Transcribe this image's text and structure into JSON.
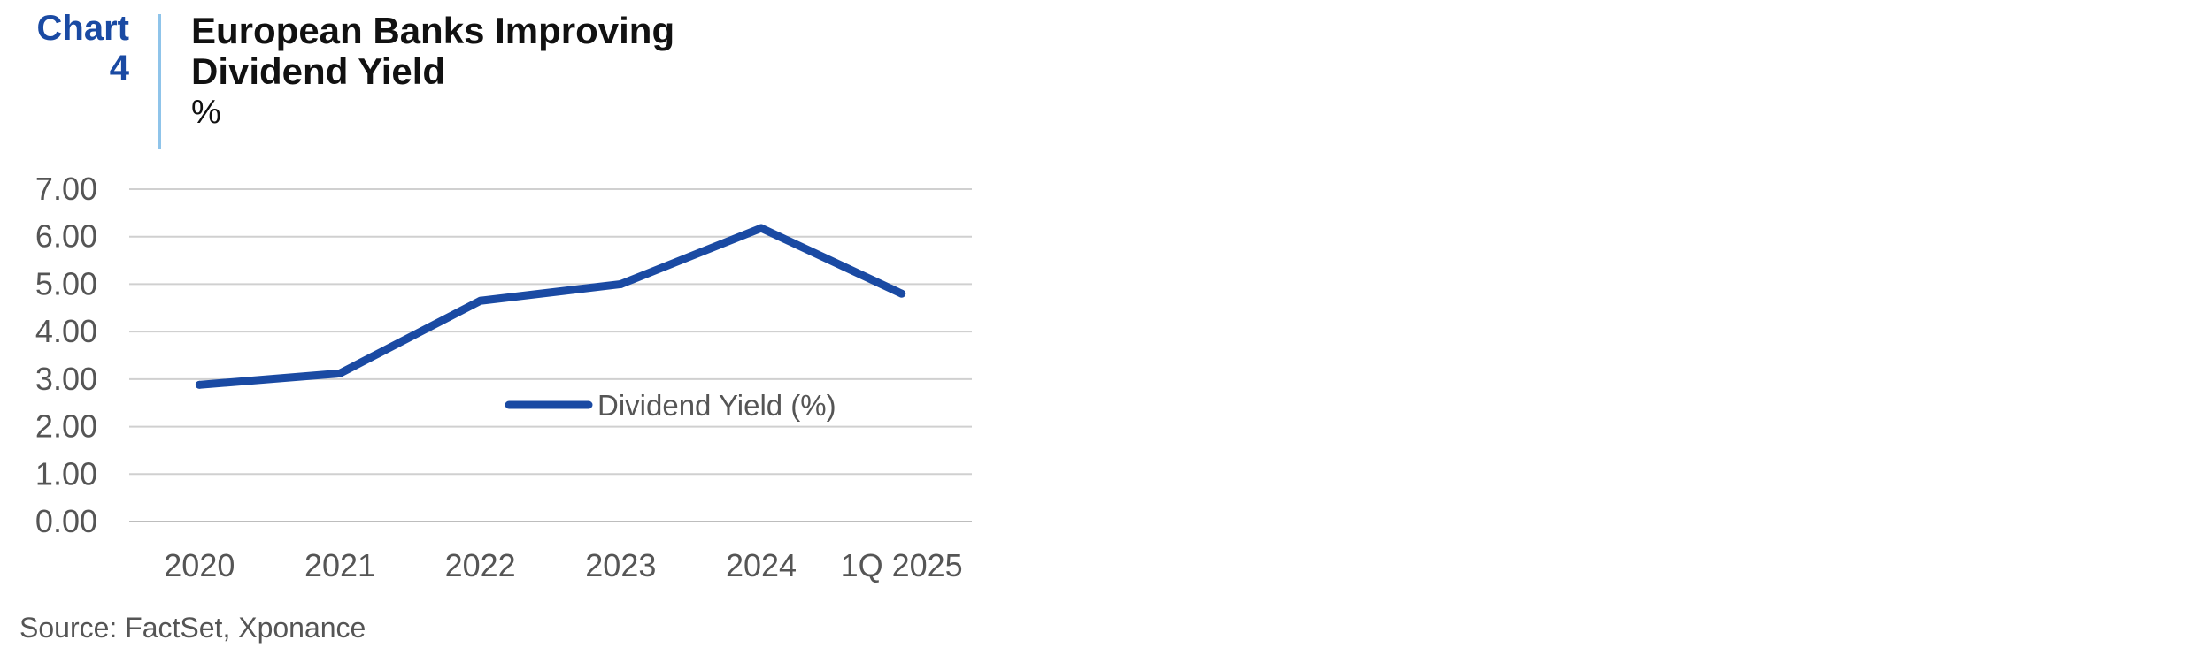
{
  "header": {
    "chart_label": "Chart\n4",
    "title": "European Banks Improving Dividend Yield",
    "unit": "%"
  },
  "source": "Source: FactSet, Xponance",
  "colors": {
    "accent": "#1a4aa3",
    "divider": "#8fc4ea",
    "grid": "#d0d0d0",
    "text": "#555555"
  },
  "chart_data": {
    "type": "line",
    "title": "European Banks Improving Dividend Yield",
    "subtitle": "%",
    "categories": [
      "2020",
      "2021",
      "2022",
      "2023",
      "2024",
      "1Q 2025"
    ],
    "series": [
      {
        "name": "Dividend Yield (%)",
        "values": [
          2.88,
          3.12,
          4.65,
          5.0,
          6.18,
          4.8
        ],
        "color": "#1a4aa3"
      }
    ],
    "ylim": [
      0,
      7
    ],
    "yticks": [
      "0.00",
      "1.00",
      "2.00",
      "3.00",
      "4.00",
      "5.00",
      "6.00",
      "7.00"
    ],
    "grid": true,
    "legend": "center-right inside plot"
  }
}
